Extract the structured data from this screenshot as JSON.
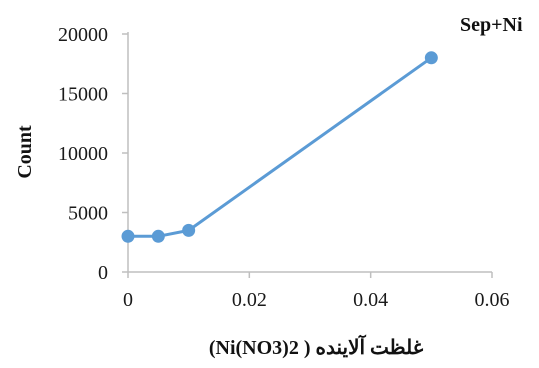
{
  "chart_data": {
    "type": "line",
    "title": "",
    "xlabel": "(Ni(NO3)2 ) غلظت آلاینده",
    "ylabel": "Count",
    "x_ticks": [
      "0",
      "0.02",
      "0.04",
      "0.06"
    ],
    "y_ticks": [
      "0",
      "5000",
      "10000",
      "15000",
      "20000"
    ],
    "xlim": [
      0,
      0.06
    ],
    "ylim": [
      0,
      20000
    ],
    "grid": false,
    "series": [
      {
        "name": "Sep+Ni",
        "color": "#5B9BD5",
        "x": [
          0,
          0.005,
          0.01,
          0.05
        ],
        "y": [
          3000,
          3000,
          3500,
          18000
        ]
      }
    ]
  }
}
